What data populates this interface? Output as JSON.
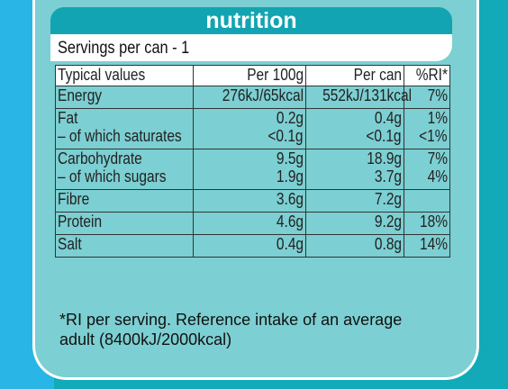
{
  "title": "nutrition",
  "servings": "Servings per can - 1",
  "columns": [
    "Typical values",
    "Per 100g",
    "Per can",
    "%RI*"
  ],
  "rows": [
    {
      "name": [
        "Energy"
      ],
      "per100g": [
        "276kJ/65kcal"
      ],
      "percan": [
        "552kJ/131kcal"
      ],
      "ri": [
        "7%"
      ]
    },
    {
      "name": [
        "Fat",
        "– of which saturates"
      ],
      "per100g": [
        "0.2g",
        "<0.1g"
      ],
      "percan": [
        "0.4g",
        "<0.1g"
      ],
      "ri": [
        "1%",
        "<1%"
      ]
    },
    {
      "name": [
        "Carbohydrate",
        "– of which sugars"
      ],
      "per100g": [
        "9.5g",
        "1.9g"
      ],
      "percan": [
        "18.9g",
        "3.7g"
      ],
      "ri": [
        "7%",
        "4%"
      ]
    },
    {
      "name": [
        "Fibre"
      ],
      "per100g": [
        "3.6g"
      ],
      "percan": [
        "7.2g"
      ],
      "ri": [
        ""
      ]
    },
    {
      "name": [
        "Protein"
      ],
      "per100g": [
        "4.6g"
      ],
      "percan": [
        "9.2g"
      ],
      "ri": [
        "18%"
      ]
    },
    {
      "name": [
        "Salt"
      ],
      "per100g": [
        "0.4g"
      ],
      "percan": [
        "0.8g"
      ],
      "ri": [
        "14%"
      ]
    }
  ],
  "footnote": "*RI per serving. Reference intake of an average adult (8400kJ/2000kcal)",
  "colors": {
    "card": "#7ccfd2",
    "header": "#12a4b2",
    "background_right": "#12aab9",
    "background_left": "#29b6e6"
  }
}
